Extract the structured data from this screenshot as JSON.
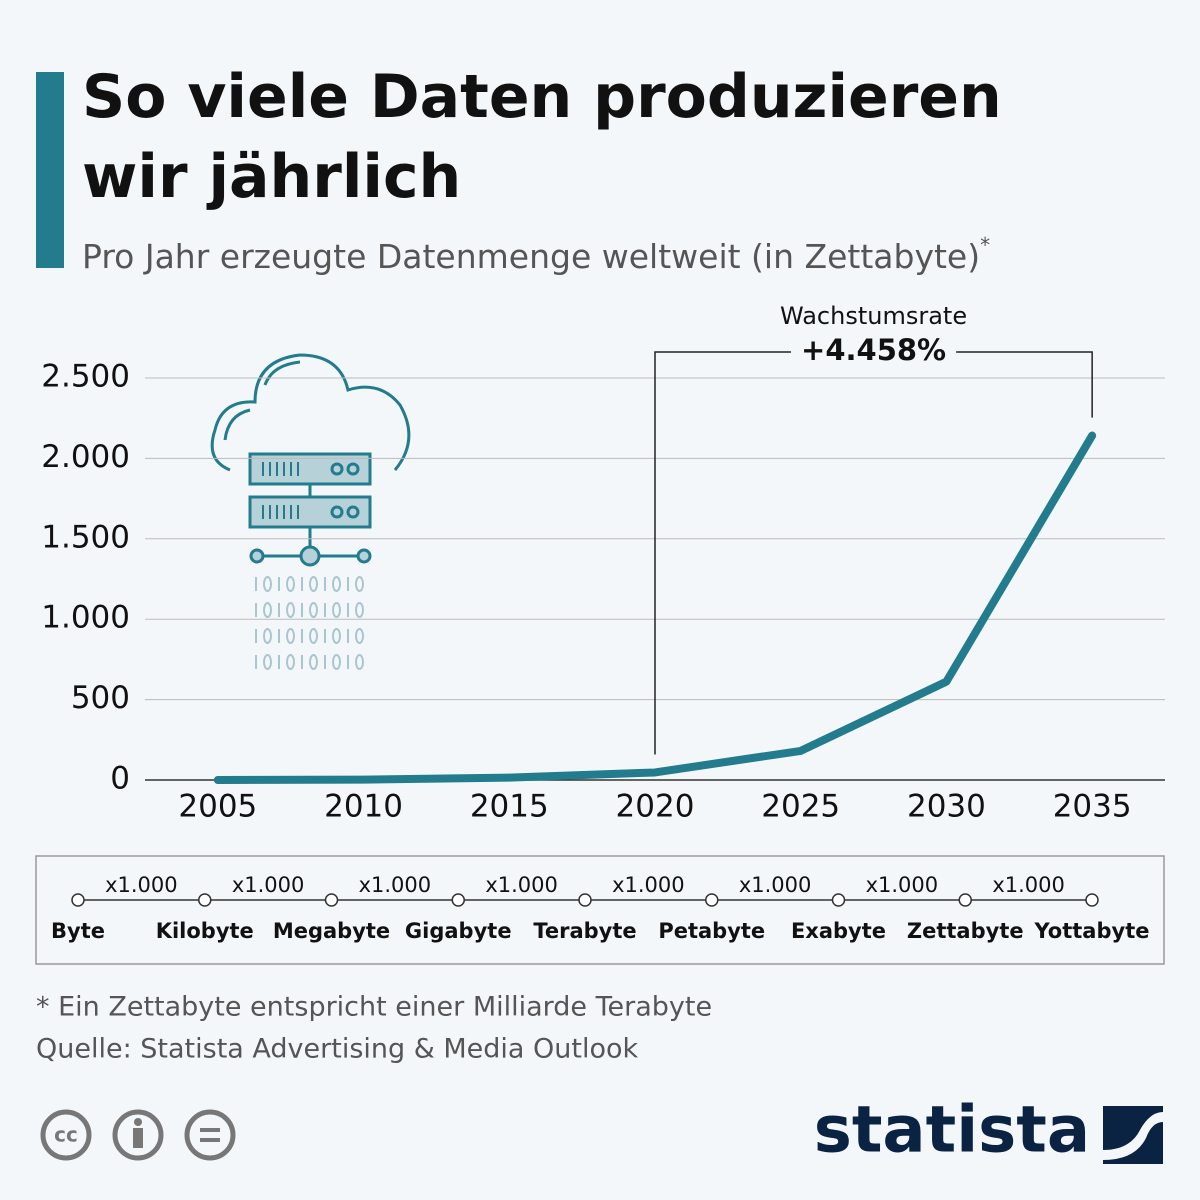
{
  "chart_data": {
    "type": "line",
    "title": "So viele Daten produzieren wir jährlich",
    "subtitle": "Pro Jahr erzeugte Datenmenge weltweit (in Zettabyte)",
    "subtitle_mark": "*",
    "x": [
      2005,
      2010,
      2015,
      2020,
      2025,
      2030,
      2035
    ],
    "series": [
      {
        "name": "Datenmenge",
        "color": "#237b8e",
        "values": [
          0.1,
          2,
          15,
          47,
          181,
          612,
          2142
        ]
      }
    ],
    "xlim": [
      2002.5,
      2037.5
    ],
    "xticks": [
      2005,
      2010,
      2015,
      2020,
      2025,
      2030,
      2035
    ],
    "ylim": [
      0,
      2500
    ],
    "yticks": [
      0,
      500,
      {
        "value": 1000,
        "label": "1.000"
      },
      {
        "value": 1500,
        "label": "1.500"
      },
      {
        "value": 2000,
        "label": "2.000"
      },
      {
        "value": 2500,
        "label": "2.500"
      }
    ],
    "grid": true,
    "annotation": {
      "label": "Wachstumsrate",
      "text": "+4.458%",
      "from_x": 2020,
      "to_x": 2035
    },
    "units": [
      "Byte",
      "Kilobyte",
      "Megabyte",
      "Gigabyte",
      "Terabyte",
      "Petabyte",
      "Exabyte",
      "Zettabyte",
      "Yottabyte"
    ],
    "unit_steps": [
      "x1.000",
      "x1.000",
      "x1.000",
      "x1.000",
      "x1.000",
      "x1.000",
      "x1.000",
      "x1.000"
    ],
    "footnote": "* Ein Zettabyte entspricht einer Milliarde Terabyte",
    "source": "Quelle: Statista Advertising & Media Outlook",
    "license": "cc",
    "brand": "statista"
  }
}
